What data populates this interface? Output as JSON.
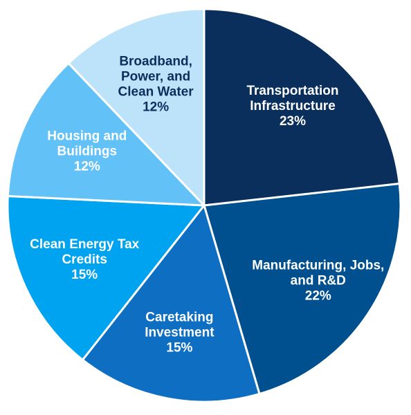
{
  "chart_data": {
    "type": "pie",
    "start_angle_deg": 0,
    "direction": "clockwise",
    "slices": [
      {
        "label_lines": [
          "Transportation",
          "Infrastructure"
        ],
        "value": 23,
        "value_label": "23%",
        "color": "#0a2f5c",
        "text_color": "#ffffff"
      },
      {
        "label_lines": [
          "Manufacturing, Jobs,",
          "and R&D"
        ],
        "value": 22,
        "value_label": "22%",
        "color": "#00508f",
        "text_color": "#ffffff"
      },
      {
        "label_lines": [
          "Caretaking",
          "Investment"
        ],
        "value": 15,
        "value_label": "15%",
        "color": "#0d6ec2",
        "text_color": "#ffffff"
      },
      {
        "label_lines": [
          "Clean Energy Tax",
          "Credits"
        ],
        "value": 15,
        "value_label": "15%",
        "color": "#00a3ef",
        "text_color": "#ffffff"
      },
      {
        "label_lines": [
          "Housing and",
          "Buildings"
        ],
        "value": 12,
        "value_label": "12%",
        "color": "#62c2f8",
        "text_color": "#ffffff"
      },
      {
        "label_lines": [
          "Broadband,",
          "Power, and",
          "Clean Water"
        ],
        "value": 12,
        "value_label": "12%",
        "color": "#bde3fb",
        "text_color": "#0a2f5c"
      }
    ]
  }
}
